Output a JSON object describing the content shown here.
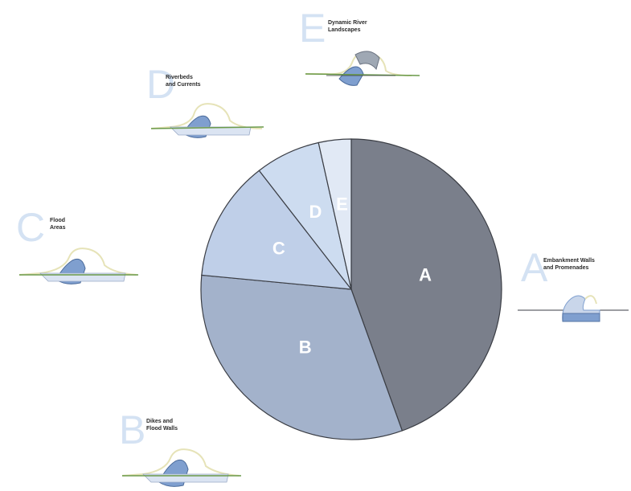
{
  "chart_data": {
    "type": "pie",
    "title": "",
    "slices": [
      {
        "label": "A",
        "value": 44.5,
        "color": "#7a7f8b"
      },
      {
        "label": "B",
        "value": 32.0,
        "color": "#a3b2cb"
      },
      {
        "label": "C",
        "value": 13.0,
        "color": "#bfcfe8"
      },
      {
        "label": "D",
        "value": 7.0,
        "color": "#cddcf0"
      },
      {
        "label": "E",
        "value": 3.5,
        "color": "#e1e9f5"
      }
    ],
    "start": "12 o'clock",
    "direction": "clockwise",
    "stroke": "#3b3e45"
  },
  "legend": [
    {
      "letter": "A",
      "description": "Embankment Walls\nand Promenades"
    },
    {
      "letter": "B",
      "description": "Dikes and\nFlood Walls"
    },
    {
      "letter": "C",
      "description": "Flood\nAreas"
    },
    {
      "letter": "D",
      "description": "Riverbeds\nand Currents"
    },
    {
      "letter": "E",
      "description": "Dynamic River\nLandscapes"
    }
  ],
  "colors": {
    "letter": "#d4e2f3",
    "water": "#7f9fcf",
    "bank": "#e6e3b8",
    "ground": "#6a9a4a"
  }
}
